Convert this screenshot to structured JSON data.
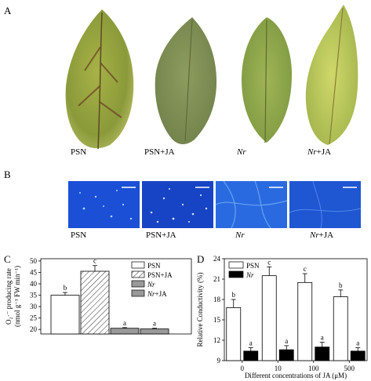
{
  "panels": {
    "a": "A",
    "b": "B",
    "c": "C",
    "d": "D"
  },
  "treatments": [
    {
      "name": "PSN",
      "italic_part": ""
    },
    {
      "name": "PSN+JA",
      "italic_part": ""
    },
    {
      "name": "Nr",
      "italic_part": "Nr"
    },
    {
      "name": "Nr+JA",
      "italic_part": "Nr"
    }
  ],
  "leaf_labels": [
    "PSN",
    "PSN+JA",
    "Nr",
    "Nr+JA"
  ],
  "micro_labels": [
    "PSN",
    "PSN+JA",
    "Nr",
    "Nr+JA"
  ],
  "colors": {
    "leaf_psn": "#8a9a3a",
    "leaf_psn_ja": "#7f8f55",
    "leaf_nr": "#8fa54a",
    "leaf_nr_ja": "#b4c44f",
    "micro_bg": "#1a4fd6",
    "micro_spot": "#dff1ff"
  },
  "chart_data": [
    {
      "type": "bar",
      "panel": "C",
      "title": "",
      "ylabel": "O₂·⁻ producing rate (nmol g⁻¹ FW min⁻¹)",
      "ylabel_line1": "O₂·⁻ producing rate",
      "ylabel_line2": "(nmol g⁻¹ FW min⁻¹)",
      "xlabel": "",
      "ylim": [
        18,
        51
      ],
      "yticks": [
        20,
        25,
        30,
        35,
        40,
        45,
        50
      ],
      "categories": [
        "PSN",
        "PSN+JA",
        "Nr",
        "Nr+JA"
      ],
      "legend": [
        "PSN",
        "PSN+JA",
        "Nr",
        "Nr+JA"
      ],
      "legend_placement": "top-right",
      "values": [
        35,
        45.5,
        20.5,
        20.2
      ],
      "errors": [
        1.2,
        2.5,
        0.3,
        0.3
      ],
      "letters": [
        "b",
        "c",
        "a",
        "a"
      ],
      "fills": [
        "white",
        "hatch",
        "#999999",
        "#999999"
      ]
    },
    {
      "type": "bar",
      "panel": "D",
      "title": "",
      "ylabel": "Relative Conductivity (%)",
      "xlabel": "Different concentrations of JA (μM)",
      "ylim": [
        9,
        24
      ],
      "yticks": [
        9,
        12,
        15,
        18,
        21,
        24
      ],
      "categories": [
        "0",
        "10",
        "100",
        "500"
      ],
      "legend_placement": "top-left",
      "series": [
        {
          "name": "PSN",
          "values": [
            16.8,
            21.5,
            20.5,
            18.4
          ],
          "errors": [
            1.2,
            1.3,
            1.3,
            1.0
          ],
          "letters": [
            "b",
            "c",
            "c",
            "b"
          ],
          "color": "#ffffff"
        },
        {
          "name": "Nr",
          "values": [
            10.4,
            10.6,
            11.0,
            10.4
          ],
          "errors": [
            0.5,
            0.6,
            0.7,
            0.5
          ],
          "letters": [
            "a",
            "a",
            "a",
            "a"
          ],
          "color": "#000000"
        }
      ]
    }
  ]
}
